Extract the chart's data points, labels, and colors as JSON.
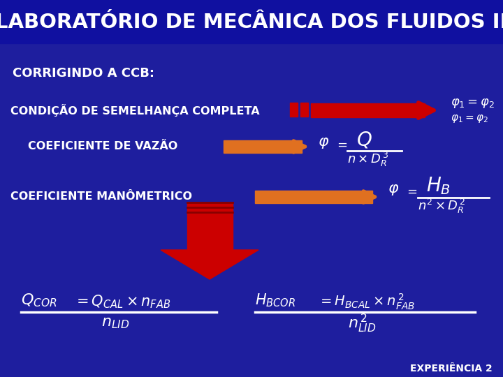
{
  "bg_color": "#1e1e9e",
  "title": "LABORATÓRIO DE MECÂNICA DOS FLUIDOS II",
  "title_color": "#ffffff",
  "subtitle": "CORRIGINDO A CCB:",
  "text_color": "#ffffff",
  "orange_color": "#e07020",
  "red_color": "#cc0000",
  "red_dark": "#880000",
  "experiencia": "EXPERIÊNCIA 2",
  "label1": "CONDIÇÃO DE SEMELHANÇA COMPLETA",
  "label2": "COEFICIENTE DE VAZÃO",
  "label3": "COEFICIENTE MANÔMETRICO"
}
